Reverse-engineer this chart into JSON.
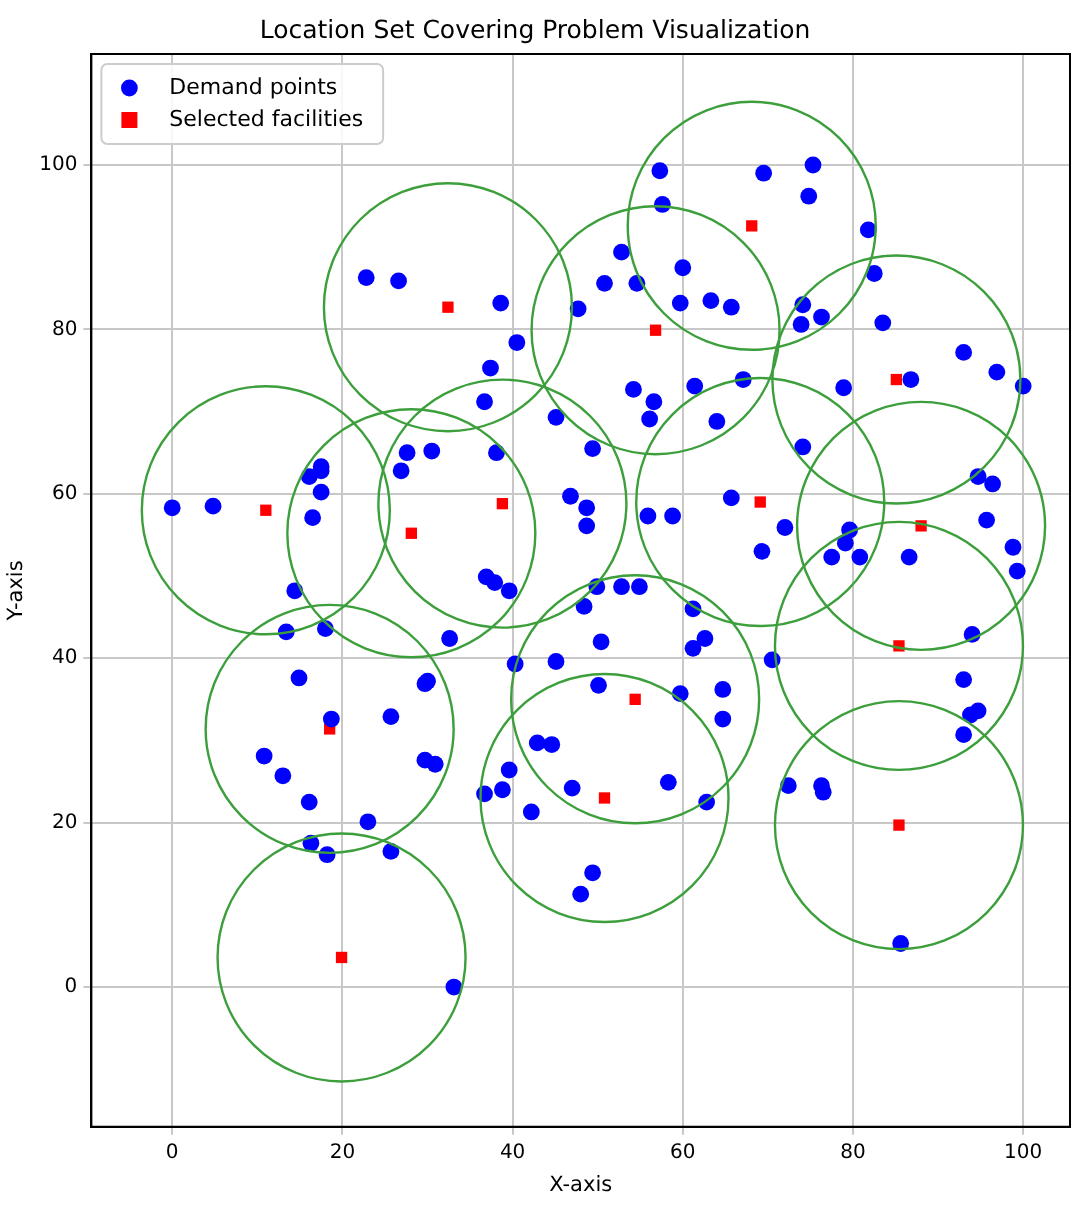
{
  "chart_data": {
    "type": "scatter",
    "title": "Location Set Covering Problem Visualization",
    "xlabel": "X-axis",
    "ylabel": "Y-axis",
    "xlim": [
      -9.5,
      105.5
    ],
    "ylim": [
      -17,
      113.5
    ],
    "xticks": [
      0,
      20,
      40,
      60,
      80,
      100
    ],
    "yticks": [
      0,
      20,
      40,
      60,
      80,
      100
    ],
    "grid": true,
    "legend": "top left",
    "series": [
      {
        "name": "Demand points",
        "marker": "circle",
        "color": "#0000ff",
        "x": [
          22.8,
          26.6,
          57.3,
          57.6,
          69.5,
          75.3,
          74.8,
          81.8,
          82.5,
          74.1,
          73.9,
          76.3,
          83.5,
          93.0,
          96.9,
          100,
          86.8,
          78.9,
          74.1,
          94.7,
          96.4,
          72.0,
          69.3,
          79.6,
          79.1,
          77.5,
          80.8,
          86.6,
          95.7,
          98.8,
          99.3,
          52.8,
          60.0,
          50.8,
          54.6,
          59.7,
          63.3,
          65.7,
          38.6,
          47.7,
          40.5,
          37.4,
          36.7,
          45.1,
          54.2,
          56.6,
          56.1,
          61.4,
          67.1,
          64.0,
          49.4,
          38.1,
          30.5,
          46.8,
          48.7,
          48.7,
          55.9,
          58.8,
          65.7,
          36.9,
          37.9,
          39.6,
          0,
          4.8,
          17.5,
          17.5,
          16.1,
          17.5,
          16.5,
          27.6,
          26.9,
          14.4,
          13.4,
          18.0,
          14.9,
          18.7,
          29.7,
          25.7,
          29.7,
          10.8,
          13.0,
          16.1,
          23.0,
          16.3,
          18.2,
          25.7,
          48.4,
          49.9,
          52.8,
          54.9,
          61.2,
          62.6,
          61.2,
          50.4,
          45.1,
          40.3,
          32.6,
          30.0,
          50.1,
          59.7,
          64.7,
          64.7,
          30.9,
          42.9,
          44.6,
          39.6,
          36.7,
          38.8,
          42.2,
          47.0,
          58.3,
          62.8,
          49.4,
          48.0,
          33.1,
          94.0,
          70.5,
          93.0,
          94.7,
          93.8,
          93.0,
          72.4,
          76.3,
          76.5,
          85.6
        ],
        "values": [
          86.3,
          85.9,
          99.3,
          95.2,
          99.0,
          100,
          96.2,
          92.1,
          86.8,
          83.0,
          80.6,
          81.5,
          80.8,
          77.2,
          74.8,
          73.1,
          73.9,
          72.9,
          65.7,
          62.1,
          61.2,
          55.9,
          53.0,
          55.6,
          54.0,
          52.3,
          52.3,
          52.3,
          56.8,
          53.5,
          50.6,
          89.4,
          87.5,
          85.6,
          85.6,
          83.2,
          83.5,
          82.7,
          83.2,
          82.5,
          78.4,
          75.3,
          71.2,
          69.3,
          72.7,
          71.2,
          69.1,
          73.1,
          73.9,
          68.8,
          65.5,
          65.0,
          65.2,
          59.7,
          58.3,
          56.1,
          57.3,
          57.3,
          59.5,
          49.9,
          49.2,
          48.2,
          58.3,
          58.5,
          63.3,
          62.8,
          62.1,
          60.2,
          57.1,
          65.0,
          62.8,
          48.2,
          43.2,
          43.6,
          37.6,
          32.6,
          36.9,
          32.9,
          27.6,
          28.1,
          25.7,
          22.5,
          20.1,
          17.5,
          16.1,
          16.5,
          46.3,
          48.7,
          48.7,
          48.7,
          46.0,
          42.4,
          41.2,
          42.0,
          39.6,
          39.3,
          42.4,
          37.2,
          36.7,
          35.7,
          36.2,
          32.6,
          27.1,
          29.7,
          29.5,
          26.4,
          23.5,
          24.0,
          21.3,
          24.2,
          24.9,
          22.5,
          13.9,
          11.3,
          0.0,
          42.9,
          39.8,
          37.4,
          33.6,
          33.1,
          30.7,
          24.5,
          24.5,
          23.7,
          5.3
        ]
      },
      {
        "name": "Selected facilities",
        "marker": "square",
        "color": "#ff0000",
        "x": [
          32.4,
          68.1,
          56.8,
          85.1,
          11.0,
          28.1,
          38.8,
          69.1,
          88.0,
          85.4,
          54.4,
          18.5,
          50.8,
          85.4,
          19.9
        ],
        "values": [
          82.7,
          92.6,
          79.9,
          73.9,
          58.0,
          55.2,
          58.8,
          59.0,
          56.1,
          41.5,
          35.0,
          31.4,
          23.0,
          19.7,
          3.6
        ]
      }
    ]
  }
}
